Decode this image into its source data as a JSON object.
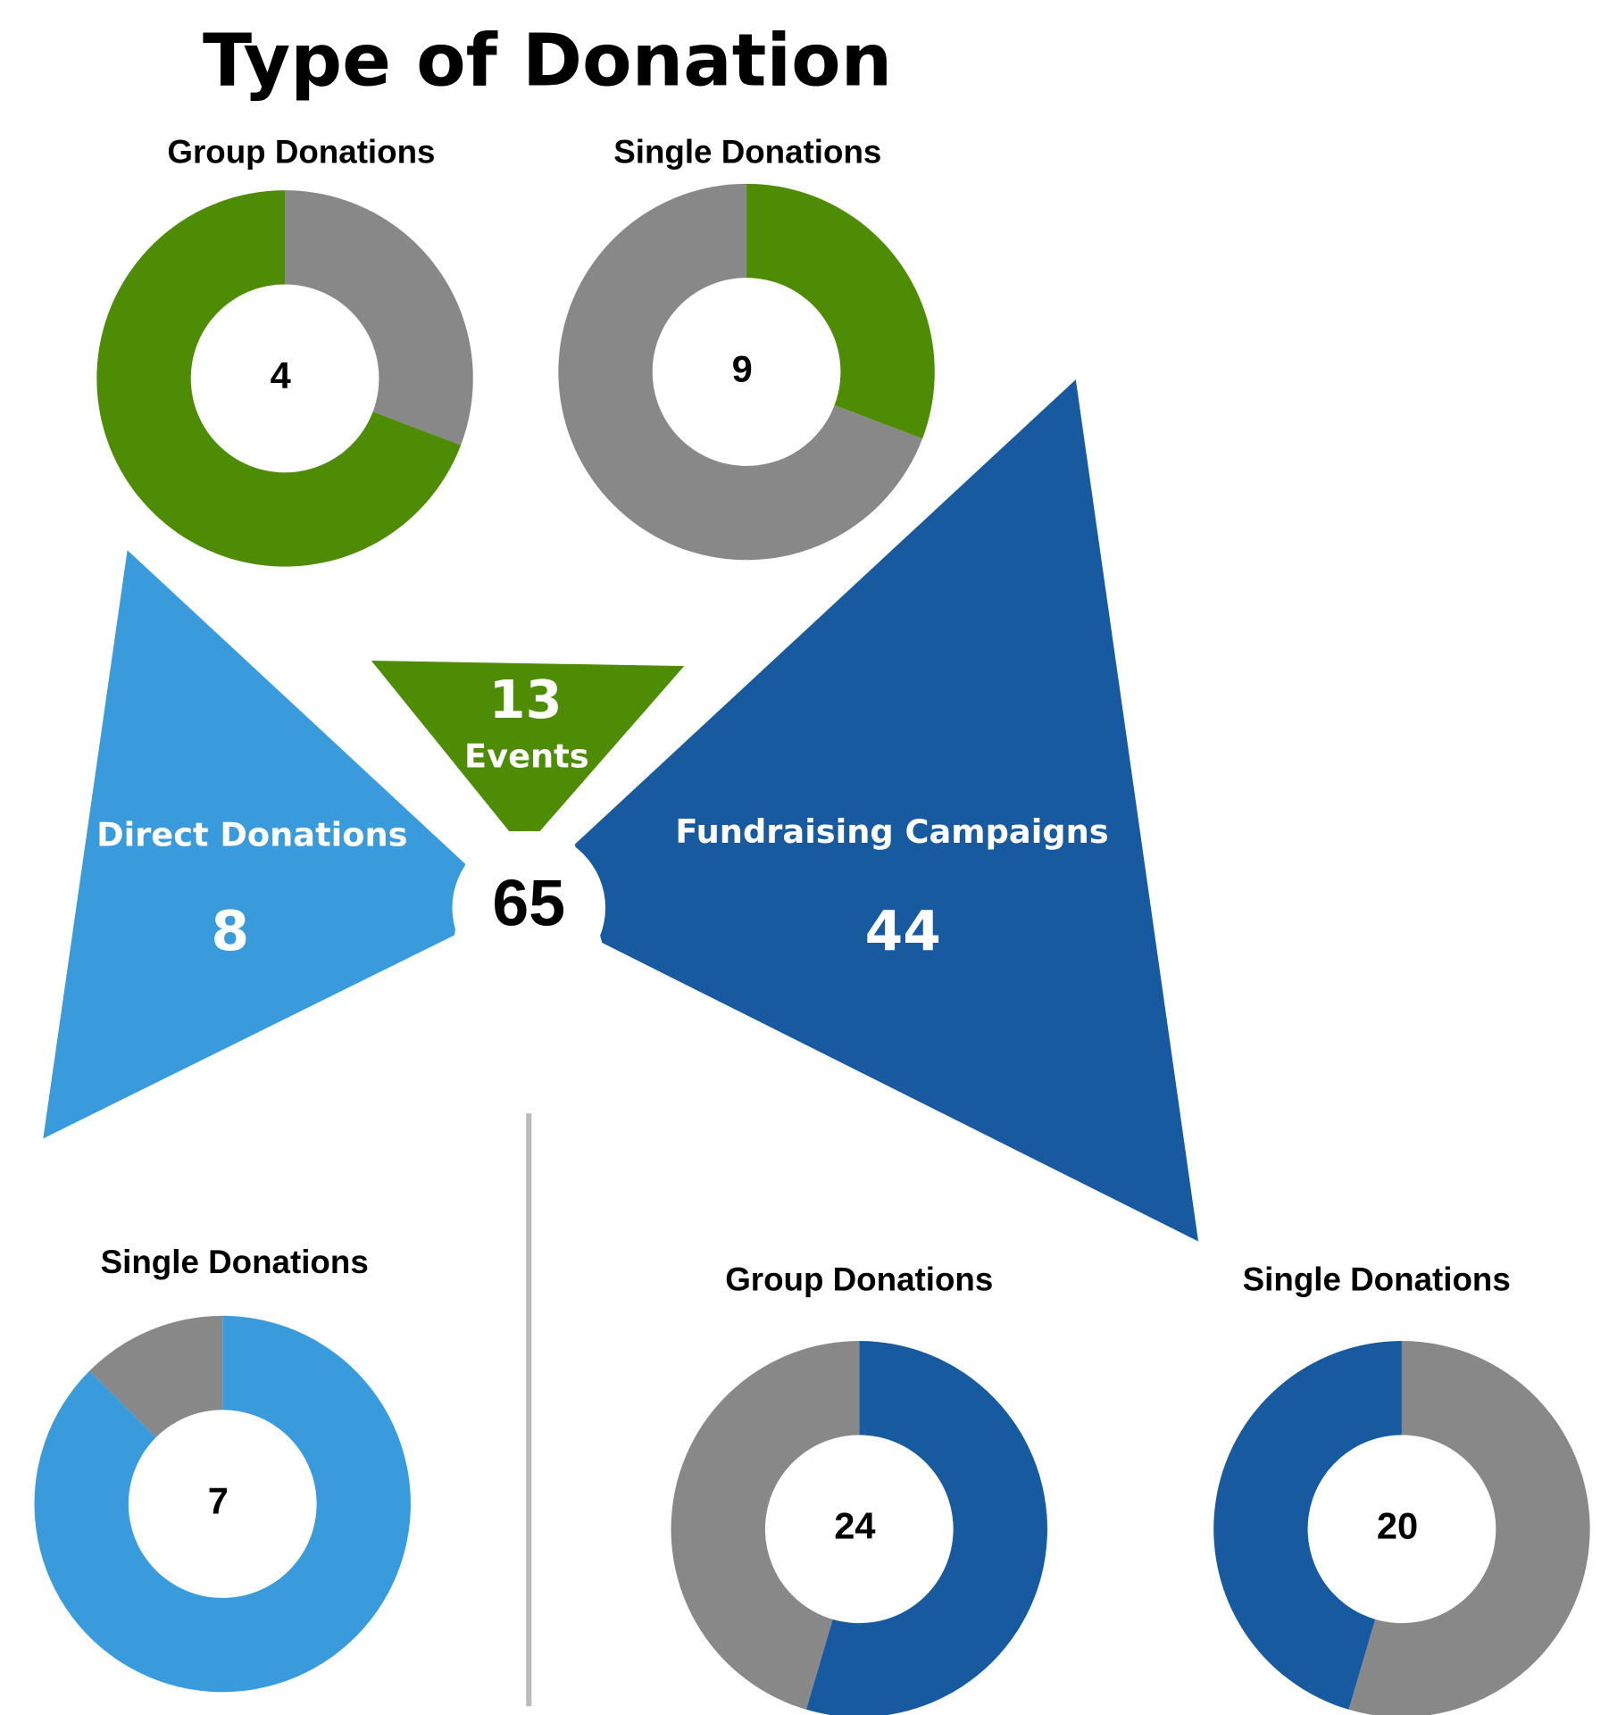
{
  "chart_data": {
    "type": "donut-tree",
    "title": "Type of Donation",
    "total": 65,
    "categories": [
      {
        "name": "Events",
        "value": 13,
        "color": "#4e8c05",
        "donuts": [
          {
            "name": "Group Donations",
            "value": 4,
            "color": "#888888",
            "rest_color": "#4e8c05",
            "direction": "cw"
          },
          {
            "name": "Single Donations",
            "value": 9,
            "color": "#888888",
            "rest_color": "#4e8c05",
            "direction": "ccw"
          }
        ]
      },
      {
        "name": "Direct Donations",
        "value": 8,
        "color": "#3a9bdc",
        "donuts": [
          {
            "name": "Single Donations",
            "value": 7,
            "color": "#3a9bdc",
            "rest_color": "#888888",
            "direction": "cw"
          }
        ]
      },
      {
        "name": "Fundraising Campaigns",
        "value": 44,
        "color": "#175aa0",
        "donuts": [
          {
            "name": "Group Donations",
            "value": 24,
            "color": "#175aa0",
            "rest_color": "#888888",
            "direction": "cw"
          },
          {
            "name": "Single Donations",
            "value": 20,
            "color": "#175aa0",
            "rest_color": "#888888",
            "direction": "ccw"
          }
        ]
      }
    ]
  }
}
